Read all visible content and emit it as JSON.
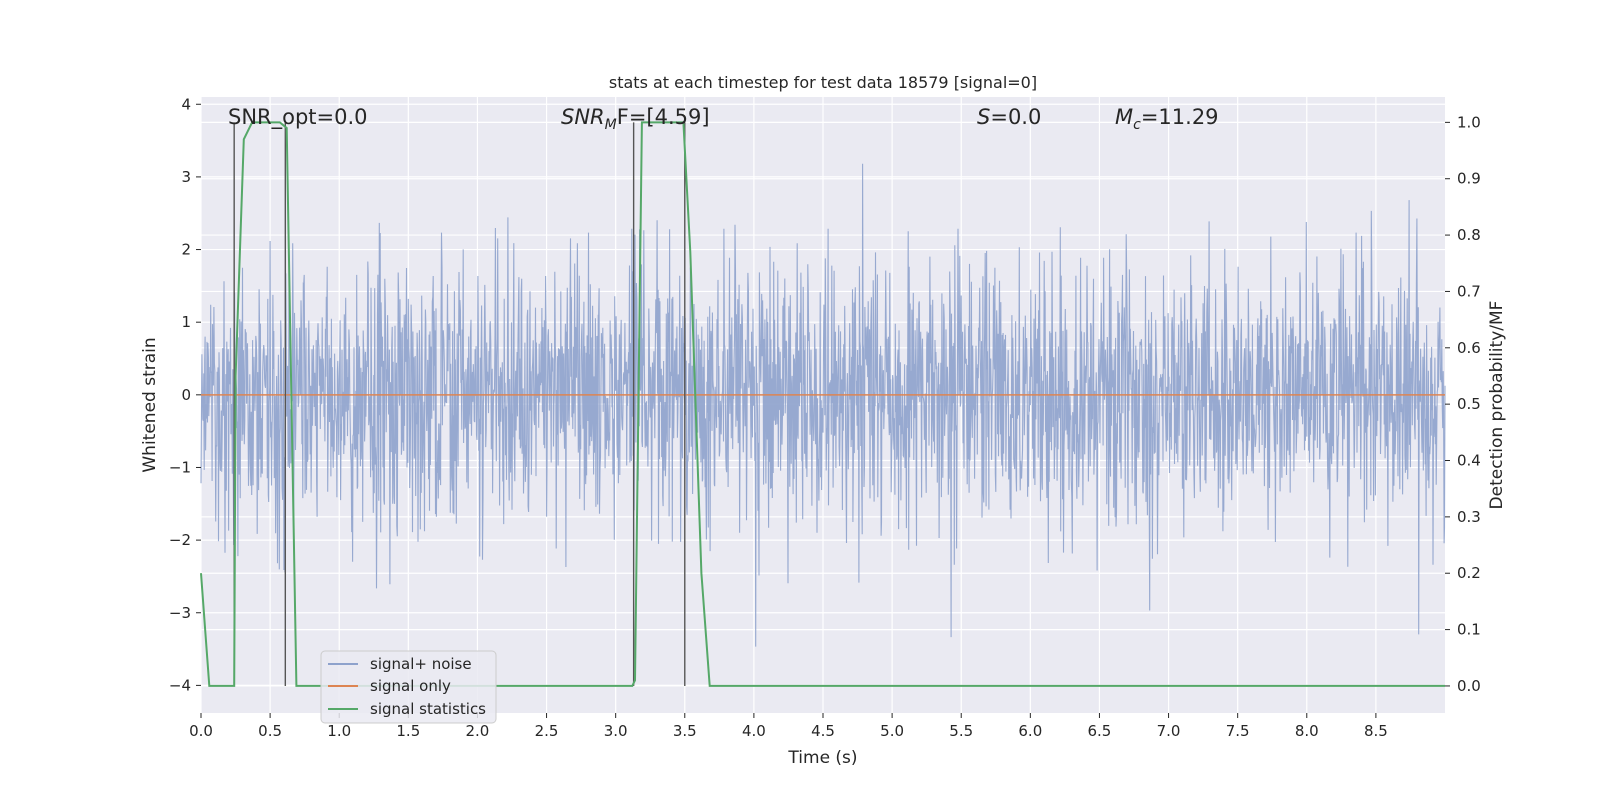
{
  "chart_data": {
    "type": "line",
    "title": "stats at each timestep for test data 18579 [signal=0]",
    "xlabel": "Time (s)",
    "ylabel_left": "Whitened strain",
    "ylabel_right": "Detection probability/MF",
    "xlim": [
      0.0,
      9.0
    ],
    "ylim_left": [
      -4.38,
      4.1
    ],
    "ylim_right": [
      -0.048,
      1.045
    ],
    "x_ticks": [
      0.0,
      0.5,
      1.0,
      1.5,
      2.0,
      2.5,
      3.0,
      3.5,
      4.0,
      4.5,
      5.0,
      5.5,
      6.0,
      6.5,
      7.0,
      7.5,
      8.0,
      8.5
    ],
    "x_tick_labels": [
      "0.0",
      "0.5",
      "1.0",
      "1.5",
      "2.0",
      "2.5",
      "3.0",
      "3.5",
      "4.0",
      "4.5",
      "5.0",
      "5.5",
      "6.0",
      "6.5",
      "7.0",
      "7.5",
      "8.0",
      "8.5"
    ],
    "y_left_ticks": [
      4,
      3,
      2,
      1,
      0,
      -1,
      -2,
      -3,
      -4
    ],
    "y_left_tick_labels": [
      "4",
      "3",
      "2",
      "1",
      "0",
      "−1",
      "−2",
      "−3",
      "−4"
    ],
    "y_right_ticks": [
      1.0,
      0.9,
      0.8,
      0.7,
      0.6,
      0.5,
      0.4,
      0.3,
      0.2,
      0.1,
      0.0
    ],
    "y_right_tick_labels": [
      "1.0",
      "0.9",
      "0.8",
      "0.7",
      "0.6",
      "0.5",
      "0.4",
      "0.3",
      "0.2",
      "0.1",
      "0.0"
    ],
    "grid": true,
    "legend_placement": "lower-left",
    "annotations": {
      "snr_opt": "SNR_opt=0.0",
      "snr_mf_main": "SNR",
      "snr_mf_sub": "M",
      "snr_mf_rest": "F=[4.59]",
      "s_main": "S",
      "s_rest": "=0.0",
      "mc_main": "M",
      "mc_sub": "c",
      "mc_rest": "=11.29"
    },
    "series": [
      {
        "name": "signal+ noise",
        "axis": "left",
        "color": "#8ea2cc",
        "description_values": "noise band approx ±1.5 with spikes up to ±3.7",
        "envelope": {
          "typical_amplitude": 1.5,
          "max_amplitude": 3.7
        }
      },
      {
        "name": "signal only",
        "axis": "left",
        "color": "#dd8452",
        "x": [
          0.0,
          9.0
        ],
        "y": [
          0.0,
          0.0
        ]
      },
      {
        "name": "signal statistics",
        "axis": "right",
        "color": "#55a868",
        "x": [
          0.0,
          0.06,
          0.24,
          0.25,
          0.31,
          0.37,
          0.57,
          0.62,
          0.69,
          3.12,
          3.14,
          3.19,
          3.49,
          3.54,
          3.62,
          3.68,
          9.0
        ],
        "y": [
          0.2,
          0.0,
          0.0,
          0.55,
          0.97,
          1.0,
          1.0,
          0.99,
          0.0,
          0.0,
          0.01,
          1.0,
          1.0,
          0.77,
          0.2,
          0.0,
          0.0
        ]
      }
    ],
    "vertical_markers": {
      "color": "#555555",
      "x": [
        0.24,
        0.61,
        3.13,
        3.5
      ],
      "y_top_right": 1.0,
      "y_bottom_right": 0.0
    }
  },
  "legend": {
    "noise_label": "signal+ noise",
    "signal_label": "signal only",
    "stats_label": "signal statistics"
  }
}
